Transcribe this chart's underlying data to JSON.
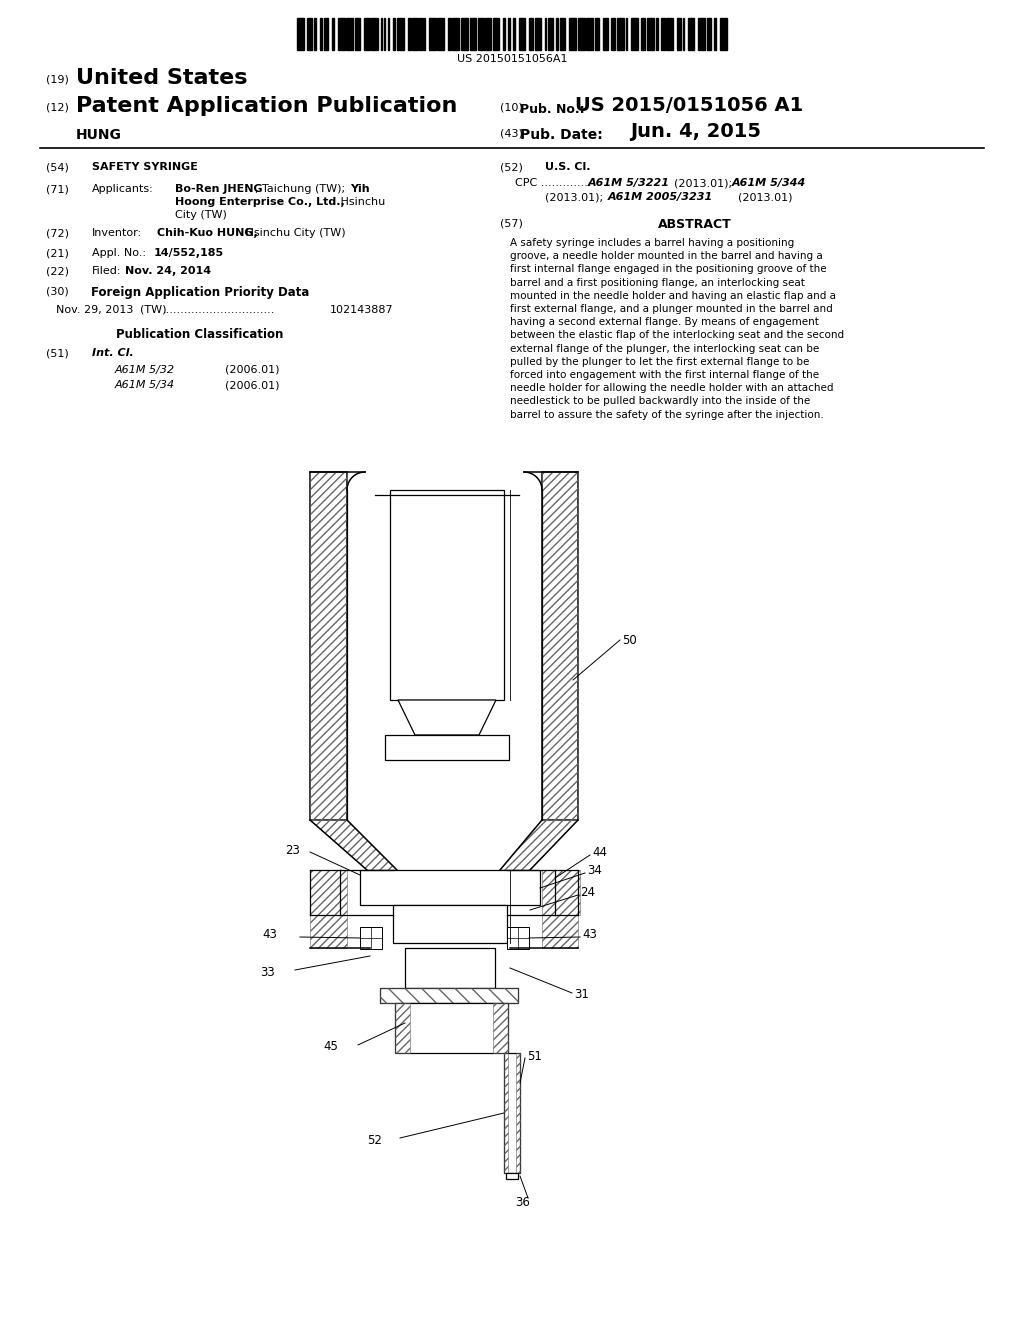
{
  "background_color": "#ffffff",
  "barcode_text": "US 20150151056A1",
  "header_line1_num": "(19)",
  "header_line1_text": "United States",
  "header_line2_num": "(12)",
  "header_line2_text": "Patent Application Publication",
  "header_line2_right_label": "(10)",
  "header_line2_right_text": "Pub. No.:",
  "header_line2_right_val": "US 2015/0151056 A1",
  "header_line3_left": "HUNG",
  "header_line3_right_label": "(43)",
  "header_line3_right_text": "Pub. Date:",
  "header_line3_right_val": "Jun. 4, 2015",
  "field54_label": "(54)",
  "field54_text": "SAFETY SYRINGE",
  "field71_label": "(71)",
  "field71_key": "Applicants:",
  "field72_label": "(72)",
  "field72_key": "Inventor:",
  "field72_bold": "Chih-Kuo HUNG,",
  "field72_rest": " Hsinchu City (TW)",
  "field21_label": "(21)",
  "field21_key": "Appl. No.:",
  "field21_val": "14/552,185",
  "field22_label": "(22)",
  "field22_key": "Filed:",
  "field22_val": "Nov. 24, 2014",
  "field30_label": "(30)",
  "field30_text": "Foreign Application Priority Data",
  "field30_date": "Nov. 29, 2013",
  "field30_country": "(TW)",
  "field30_dots": "...............................",
  "field30_num": "102143887",
  "pub_class_title": "Publication Classification",
  "field51_label": "(51)",
  "field51_key": "Int. Cl.",
  "field51_class1": "A61M 5/32",
  "field51_year1": "(2006.01)",
  "field51_class2": "A61M 5/34",
  "field51_year2": "(2006.01)",
  "field52_label": "(52)",
  "field52_key": "U.S. Cl.",
  "field57_label": "(57)",
  "field57_title": "ABSTRACT",
  "abstract_lines": [
    "A safety syringe includes a barrel having a positioning",
    "groove, a needle holder mounted in the barrel and having a",
    "first internal flange engaged in the positioning groove of the",
    "barrel and a first positioning flange, an interlocking seat",
    "mounted in the needle holder and having an elastic flap and a",
    "first external flange, and a plunger mounted in the barrel and",
    "having a second external flange. By means of engagement",
    "between the elastic flap of the interlocking seat and the second",
    "external flange of the plunger, the interlocking seat can be",
    "pulled by the plunger to let the first external flange to be",
    "forced into engagement with the first internal flange of the",
    "needle holder for allowing the needle holder with an attached",
    "needlestick to be pulled backwardly into the inside of the",
    "barrel to assure the safety of the syringe after the injection."
  ]
}
